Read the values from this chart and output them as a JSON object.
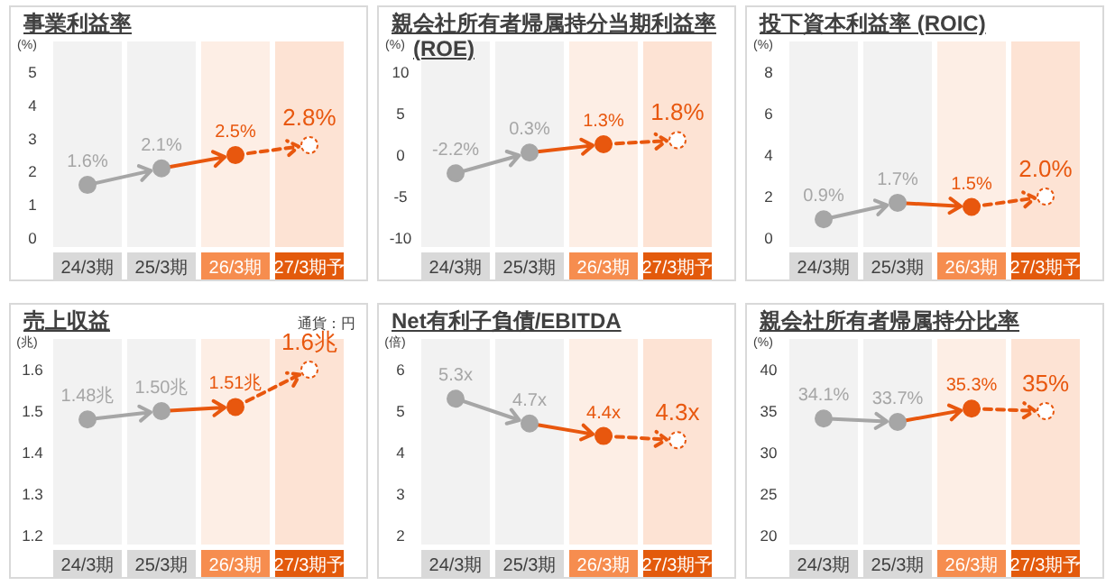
{
  "chart_data": [
    {
      "type": "scatter",
      "title": "事業利益率",
      "ylabel": "(%)",
      "categories": [
        "24/3期",
        "25/3期",
        "26/3期",
        "27/3期予"
      ],
      "ylim": [
        0,
        5
      ],
      "yticks": [
        0,
        1,
        2,
        3,
        4,
        5
      ],
      "bands": [
        {
          "axis": "x",
          "from": "24/3期",
          "to": "24/3期",
          "color": "#f2f2f2"
        },
        {
          "axis": "x",
          "from": "25/3期",
          "to": "25/3期",
          "color": "#f2f2f2"
        },
        {
          "axis": "x",
          "from": "26/3期",
          "to": "26/3期",
          "color": "#fdeee5"
        },
        {
          "axis": "x",
          "from": "27/3期予",
          "to": "27/3期予",
          "color": "#fde3d4"
        }
      ],
      "series": [
        {
          "marker": "circle",
          "colors": [
            "#a6a6a6",
            "#a6a6a6",
            "#e8570e",
            "#ffffff"
          ],
          "values": [
            1.6,
            2.1,
            2.5,
            2.8
          ],
          "value_labels": [
            "1.6%",
            "2.1%",
            "2.5%",
            "2.8%"
          ]
        }
      ]
    },
    {
      "type": "scatter",
      "title": "親会社所有者帰属持分当期利益率 (ROE)",
      "ylabel": "(%)",
      "categories": [
        "24/3期",
        "25/3期",
        "26/3期",
        "27/3期予"
      ],
      "ylim": [
        -10,
        10
      ],
      "yticks": [
        -10,
        -5,
        0,
        5,
        10
      ],
      "bands": [
        {
          "axis": "x",
          "from": "24/3期",
          "to": "24/3期",
          "color": "#f2f2f2"
        },
        {
          "axis": "x",
          "from": "25/3期",
          "to": "25/3期",
          "color": "#f2f2f2"
        },
        {
          "axis": "x",
          "from": "26/3期",
          "to": "26/3期",
          "color": "#fdeee5"
        },
        {
          "axis": "x",
          "from": "27/3期予",
          "to": "27/3期予",
          "color": "#fde3d4"
        }
      ],
      "series": [
        {
          "marker": "circle",
          "colors": [
            "#a6a6a6",
            "#a6a6a6",
            "#e8570e",
            "#ffffff"
          ],
          "values": [
            -2.2,
            0.3,
            1.3,
            1.8
          ],
          "value_labels": [
            "-2.2%",
            "0.3%",
            "1.3%",
            "1.8%"
          ]
        }
      ]
    },
    {
      "type": "scatter",
      "title": "投下資本利益率 (ROIC)",
      "ylabel": "(%)",
      "categories": [
        "24/3期",
        "25/3期",
        "26/3期",
        "27/3期予"
      ],
      "ylim": [
        0,
        8
      ],
      "yticks": [
        0,
        2,
        4,
        6,
        8
      ],
      "bands": [
        {
          "axis": "x",
          "from": "24/3期",
          "to": "24/3期",
          "color": "#f2f2f2"
        },
        {
          "axis": "x",
          "from": "25/3期",
          "to": "25/3期",
          "color": "#f2f2f2"
        },
        {
          "axis": "x",
          "from": "26/3期",
          "to": "26/3期",
          "color": "#fdeee5"
        },
        {
          "axis": "x",
          "from": "27/3期予",
          "to": "27/3期予",
          "color": "#fde3d4"
        }
      ],
      "series": [
        {
          "marker": "circle",
          "colors": [
            "#a6a6a6",
            "#a6a6a6",
            "#e8570e",
            "#ffffff"
          ],
          "values": [
            0.9,
            1.7,
            1.5,
            2.0
          ],
          "value_labels": [
            "0.9%",
            "1.7%",
            "1.5%",
            "2.0%"
          ]
        }
      ]
    },
    {
      "type": "scatter",
      "title": "売上収益",
      "ylabel": "(兆)",
      "annotations": [
        "通貨：円"
      ],
      "categories": [
        "24/3期",
        "25/3期",
        "26/3期",
        "27/3期予"
      ],
      "ylim": [
        1.2,
        1.6
      ],
      "yticks": [
        1.2,
        1.3,
        1.4,
        1.5,
        1.6
      ],
      "bands": [
        {
          "axis": "x",
          "from": "24/3期",
          "to": "24/3期",
          "color": "#f2f2f2"
        },
        {
          "axis": "x",
          "from": "25/3期",
          "to": "25/3期",
          "color": "#f2f2f2"
        },
        {
          "axis": "x",
          "from": "26/3期",
          "to": "26/3期",
          "color": "#fdeee5"
        },
        {
          "axis": "x",
          "from": "27/3期予",
          "to": "27/3期予",
          "color": "#fde3d4"
        }
      ],
      "series": [
        {
          "marker": "circle",
          "colors": [
            "#a6a6a6",
            "#a6a6a6",
            "#e8570e",
            "#ffffff"
          ],
          "values": [
            1.48,
            1.5,
            1.51,
            1.6
          ],
          "value_labels": [
            "1.48兆",
            "1.50兆",
            "1.51兆",
            "1.6兆"
          ]
        }
      ]
    },
    {
      "type": "scatter",
      "title": "Net有利子負債/EBITDA",
      "ylabel": "(倍)",
      "categories": [
        "24/3期",
        "25/3期",
        "26/3期",
        "27/3期予"
      ],
      "ylim": [
        2,
        6
      ],
      "yticks": [
        2,
        3,
        4,
        5,
        6
      ],
      "bands": [
        {
          "axis": "x",
          "from": "24/3期",
          "to": "24/3期",
          "color": "#f2f2f2"
        },
        {
          "axis": "x",
          "from": "25/3期",
          "to": "25/3期",
          "color": "#f2f2f2"
        },
        {
          "axis": "x",
          "from": "26/3期",
          "to": "26/3期",
          "color": "#fdeee5"
        },
        {
          "axis": "x",
          "from": "27/3期予",
          "to": "27/3期予",
          "color": "#fde3d4"
        }
      ],
      "series": [
        {
          "marker": "circle",
          "colors": [
            "#a6a6a6",
            "#a6a6a6",
            "#e8570e",
            "#ffffff"
          ],
          "values": [
            5.3,
            4.7,
            4.4,
            4.3
          ],
          "value_labels": [
            "5.3x",
            "4.7x",
            "4.4x",
            "4.3x"
          ]
        }
      ]
    },
    {
      "type": "scatter",
      "title": "親会社所有者帰属持分比率",
      "ylabel": "(%)",
      "categories": [
        "24/3期",
        "25/3期",
        "26/3期",
        "27/3期予"
      ],
      "ylim": [
        20,
        40
      ],
      "yticks": [
        20,
        25,
        30,
        35,
        40
      ],
      "bands": [
        {
          "axis": "x",
          "from": "24/3期",
          "to": "24/3期",
          "color": "#f2f2f2"
        },
        {
          "axis": "x",
          "from": "25/3期",
          "to": "25/3期",
          "color": "#f2f2f2"
        },
        {
          "axis": "x",
          "from": "26/3期",
          "to": "26/3期",
          "color": "#fdeee5"
        },
        {
          "axis": "x",
          "from": "27/3期予",
          "to": "27/3期予",
          "color": "#fde3d4"
        }
      ],
      "series": [
        {
          "marker": "circle",
          "colors": [
            "#a6a6a6",
            "#a6a6a6",
            "#e8570e",
            "#ffffff"
          ],
          "values": [
            34.1,
            33.7,
            35.3,
            35
          ],
          "value_labels": [
            "34.1%",
            "33.7%",
            "35.3%",
            "35%"
          ]
        }
      ]
    }
  ]
}
